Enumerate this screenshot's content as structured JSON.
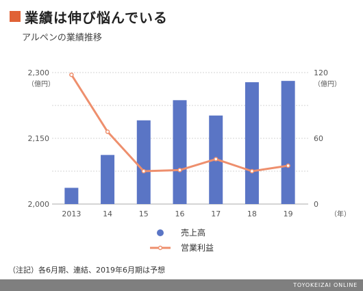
{
  "header": {
    "title": "業績は伸び悩んでいる",
    "subtitle": "アルペンの業績推移"
  },
  "colors": {
    "accent": "#e06236",
    "bar": "#5a75c5",
    "line": "#ee8f6d",
    "footer_bg": "#7f7f7f"
  },
  "chart_data": {
    "type": "bar",
    "categories": [
      "2013",
      "14",
      "15",
      "16",
      "17",
      "18",
      "19"
    ],
    "series": [
      {
        "name": "売上高",
        "type": "bar",
        "axis": "left",
        "values": [
          2037,
          2112,
          2191,
          2237,
          2202,
          2278,
          2281
        ]
      },
      {
        "name": "営業利益",
        "type": "line",
        "axis": "right",
        "values": [
          118,
          66,
          30,
          31,
          41,
          30,
          35
        ]
      }
    ],
    "y_left": {
      "label": "（億円）",
      "ticks": [
        "2,300",
        "2,150",
        "2,000"
      ],
      "tick_values": [
        2300,
        2150,
        2000
      ],
      "ylim": [
        2000,
        2300
      ]
    },
    "y_right": {
      "label": "（億円）",
      "ticks": [
        "120",
        "60",
        "0"
      ],
      "tick_values": [
        120,
        60,
        0
      ],
      "ylim": [
        0,
        120
      ]
    },
    "x_unit": "（年）",
    "grid": true,
    "legend_placement": "bottom-center"
  },
  "note": "（注記）各6月期、連結、2019年6月期は予想",
  "footer": {
    "source": "TOYOKEIZAI ONLINE"
  }
}
